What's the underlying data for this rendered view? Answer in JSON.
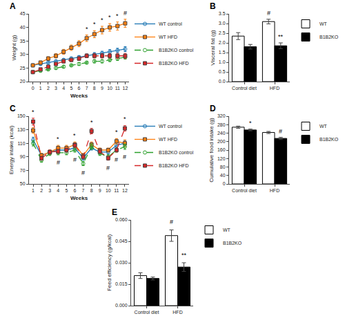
{
  "chart_data": [
    {
      "type": "line",
      "title": "A",
      "xlabel": "Weeks",
      "ylabel": "Weight (g)",
      "x": [
        0,
        1,
        2,
        3,
        4,
        5,
        6,
        7,
        8,
        9,
        10,
        11,
        12
      ],
      "series": [
        {
          "name": "WT control",
          "marker": "circle-open",
          "line_style": "solid",
          "values": [
            26.0,
            26.5,
            27.0,
            27.5,
            28.0,
            28.5,
            29.0,
            29.5,
            30.0,
            30.5,
            31.0,
            31.5,
            32.0
          ],
          "errors": [
            0.5,
            0.5,
            0.5,
            0.5,
            0.5,
            0.6,
            0.6,
            0.7,
            0.7,
            0.7,
            0.8,
            0.8,
            0.9
          ]
        },
        {
          "name": "WT HFD",
          "marker": "square",
          "line_style": "solid",
          "values": [
            26.0,
            27.0,
            28.5,
            29.5,
            31.0,
            32.5,
            34.0,
            36.0,
            37.5,
            39.0,
            40.0,
            40.5,
            41.5
          ],
          "errors": [
            0.5,
            0.6,
            0.7,
            0.8,
            0.9,
            1.0,
            1.1,
            1.2,
            1.3,
            1.4,
            1.4,
            1.5,
            1.5
          ]
        },
        {
          "name": "B1B2KO control",
          "marker": "circle-open",
          "line_style": "dash",
          "values": [
            23.5,
            24.0,
            24.5,
            25.0,
            25.5,
            26.0,
            26.5,
            27.0,
            27.5,
            27.5,
            28.0,
            28.5,
            29.0
          ],
          "errors": [
            0.4,
            0.4,
            0.4,
            0.4,
            0.5,
            0.5,
            0.5,
            0.5,
            0.6,
            0.6,
            0.6,
            0.7,
            0.7
          ]
        },
        {
          "name": "B1B2KO HFD",
          "marker": "square",
          "line_style": "dash",
          "values": [
            23.5,
            24.5,
            25.5,
            26.5,
            27.5,
            28.0,
            28.5,
            29.5,
            29.5,
            29.5,
            29.5,
            29.5,
            29.5
          ],
          "errors": [
            0.4,
            0.4,
            0.5,
            0.5,
            0.6,
            0.6,
            0.7,
            0.7,
            0.8,
            0.8,
            0.8,
            0.9,
            0.9
          ]
        }
      ],
      "annotations": [
        {
          "text": "*",
          "x": 7,
          "y": 37.7,
          "series": "WT HFD"
        },
        {
          "text": "*",
          "x": 8,
          "y": 39.3,
          "series": "WT HFD"
        },
        {
          "text": "*",
          "x": 9,
          "y": 40.9,
          "series": "WT HFD"
        },
        {
          "text": "*",
          "x": 10,
          "y": 41.9,
          "series": "WT HFD"
        },
        {
          "text": "*",
          "x": 11,
          "y": 42.5,
          "series": "WT HFD"
        },
        {
          "text": "#",
          "x": 12,
          "y": 43.5,
          "series": "WT HFD"
        }
      ],
      "xlim": [
        -0.5,
        12.5
      ],
      "xticks": [
        0,
        1,
        2,
        3,
        4,
        5,
        6,
        7,
        8,
        9,
        10,
        11,
        12
      ],
      "ylim": [
        20,
        45
      ],
      "yticks": [
        20,
        25,
        30,
        35,
        40,
        45
      ],
      "grid": false,
      "legend": "right"
    },
    {
      "type": "bar",
      "title": "B",
      "ylabel": "Visceral fat (g)",
      "categories": [
        "Control diet",
        "HFD"
      ],
      "series": [
        {
          "name": "WT",
          "color": "white",
          "values": [
            2.35,
            3.1
          ],
          "errors": [
            0.18,
            0.12
          ]
        },
        {
          "name": "B1B2KO",
          "color": "black",
          "values": [
            1.8,
            1.85
          ],
          "errors": [
            0.12,
            0.15
          ]
        }
      ],
      "annotations": [
        {
          "text": "#",
          "x": "HFD",
          "y": 3.3,
          "series": "WT"
        },
        {
          "text": "**",
          "x": "HFD",
          "y": 2.08,
          "series": "B1B2KO"
        }
      ],
      "ylim": [
        0,
        3.5
      ],
      "yticks": [
        {
          "value": 0.0,
          "label": "0.0"
        },
        0.5,
        {
          "value": 1.0,
          "label": "1.0"
        },
        1.5,
        {
          "value": 2.0,
          "label": "2.0"
        },
        2.5,
        {
          "value": 3.0,
          "label": "3.0"
        },
        3.5
      ],
      "grid": false,
      "legend": "right"
    },
    {
      "type": "line",
      "title": "C",
      "xlabel": "Weeks",
      "ylabel": "Energy intake (kcal)",
      "x": [
        1,
        2,
        3,
        4,
        5,
        6,
        7,
        8,
        9,
        10,
        11,
        12
      ],
      "series": [
        {
          "name": "WT control",
          "marker": "circle-open",
          "line_style": "solid",
          "values": [
            115,
            92,
            97,
            100,
            100,
            103,
            88,
            103,
            97,
            97,
            107,
            110
          ],
          "errors": [
            4,
            3,
            3,
            4,
            3,
            3,
            3,
            3,
            3,
            3,
            4,
            4
          ]
        },
        {
          "name": "WT HFD",
          "marker": "square",
          "line_style": "solid",
          "values": [
            129,
            92,
            97,
            103,
            103,
            108,
            92,
            108,
            100,
            100,
            113,
            110
          ],
          "errors": [
            4,
            3,
            3,
            4,
            4,
            4,
            3,
            4,
            3,
            3,
            4,
            5
          ]
        },
        {
          "name": "B1B2KO control",
          "marker": "circle-open",
          "line_style": "dash",
          "values": [
            110,
            85,
            95,
            96,
            96,
            100,
            80,
            105,
            95,
            90,
            100,
            105
          ],
          "errors": [
            4,
            3,
            3,
            3,
            3,
            3,
            3,
            4,
            3,
            3,
            3,
            4
          ]
        },
        {
          "name": "B1B2KO HFD",
          "marker": "square",
          "line_style": "dash",
          "values": [
            142,
            88,
            97,
            98,
            100,
            107,
            90,
            128,
            98,
            88,
            100,
            132
          ],
          "errors": [
            5,
            3,
            3,
            3,
            3,
            3,
            3,
            4,
            3,
            3,
            3,
            4
          ]
        }
      ],
      "annotations": [
        {
          "text": "*",
          "x": 1,
          "y": 149
        },
        {
          "text": "*",
          "x": 4,
          "y": 109
        },
        {
          "text": "*",
          "x": 6,
          "y": 114
        },
        {
          "text": "*",
          "x": 8,
          "y": 134
        },
        {
          "text": "*",
          "x": 11,
          "y": 119
        },
        {
          "text": "*",
          "x": 12,
          "y": 139
        },
        {
          "text": "#",
          "x": 4,
          "y": 89
        },
        {
          "text": "#",
          "x": 6,
          "y": 93
        },
        {
          "text": "#",
          "x": 7,
          "y": 73
        },
        {
          "text": "#",
          "x": 10,
          "y": 81
        },
        {
          "text": "#",
          "x": 11,
          "y": 93
        },
        {
          "text": "#",
          "x": 12,
          "y": 97
        }
      ],
      "xlim": [
        0.5,
        12.5
      ],
      "xticks": [
        1,
        2,
        3,
        4,
        5,
        6,
        7,
        8,
        9,
        10,
        11,
        12
      ],
      "ylim": [
        50,
        150
      ],
      "yticks": [
        50,
        70,
        90,
        110,
        130,
        150
      ],
      "grid": false,
      "legend": "right"
    },
    {
      "type": "bar",
      "title": "D",
      "ylabel": "Cumulative food intake (g)",
      "categories": [
        "Control diet",
        "HFD"
      ],
      "series": [
        {
          "name": "WT",
          "color": "white",
          "values": [
            268,
            243
          ],
          "errors": [
            5,
            5
          ]
        },
        {
          "name": "B1B2KO",
          "color": "black",
          "values": [
            255,
            215
          ],
          "errors": [
            4,
            5
          ]
        }
      ],
      "annotations": [
        {
          "text": "*",
          "x": "Control diet",
          "y": 264,
          "series": "B1B2KO"
        },
        {
          "text": "#",
          "x": "HFD",
          "y": 225,
          "series": "B1B2KO"
        }
      ],
      "ylim": [
        0,
        320
      ],
      "yticks": [
        0,
        40,
        80,
        120,
        160,
        200,
        240,
        280,
        320
      ],
      "grid": false,
      "legend": "right"
    },
    {
      "type": "bar",
      "title": "E",
      "ylabel": "Feed efficiency (g/kcal)",
      "categories": [
        "Control diet",
        "HFD"
      ],
      "series": [
        {
          "name": "WT",
          "color": "white",
          "values": [
            0.021,
            0.049
          ],
          "errors": [
            0.002,
            0.004
          ]
        },
        {
          "name": "B1B2KO",
          "color": "black",
          "values": [
            0.019,
            0.027
          ],
          "errors": [
            0.001,
            0.003
          ]
        }
      ],
      "annotations": [
        {
          "text": "#",
          "x": "HFD",
          "y": 0.055,
          "series": "WT"
        },
        {
          "text": "**",
          "x": "HFD",
          "y": 0.032,
          "series": "B1B2KO"
        }
      ],
      "ylim": [
        0,
        0.06
      ],
      "yticks": [
        {
          "value": 0,
          "label": "0.000"
        },
        0.015,
        {
          "value": 0.03,
          "label": "0.030"
        },
        0.045,
        {
          "value": 0.06,
          "label": "0.060"
        }
      ],
      "grid": false,
      "legend": "right"
    }
  ]
}
